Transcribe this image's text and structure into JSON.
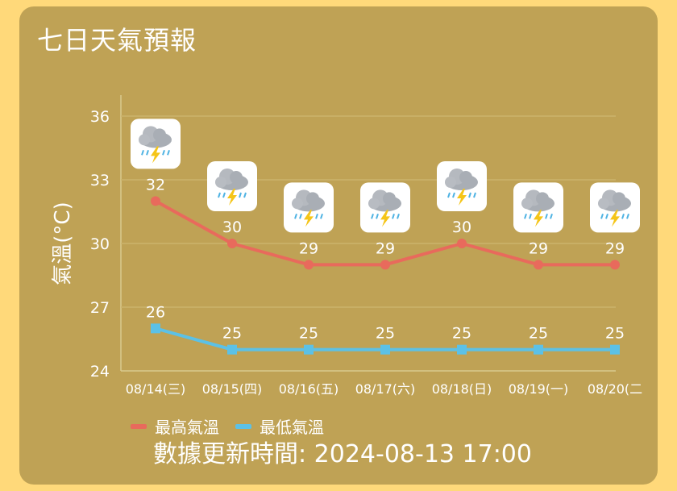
{
  "title": "七日天氣預報",
  "updated": "數據更新時間: 2024-08-13 17:00",
  "colors": {
    "background": "#ffd97a",
    "card": "#bfa255",
    "max": "#e86a5c",
    "min": "#5cc1e6"
  },
  "chart_data": {
    "type": "line",
    "ylabel": "氣溫(°C)",
    "ylim": [
      24,
      36
    ],
    "yticks": [
      24,
      27,
      30,
      33,
      36
    ],
    "categories": [
      "08/14(三)",
      "08/15(四)",
      "08/16(五)",
      "08/17(六)",
      "08/18(日)",
      "08/19(一)",
      "08/20(二"
    ],
    "icons": [
      "thunderstorm-icon",
      "thunderstorm-icon",
      "thunderstorm-icon",
      "thunderstorm-icon",
      "thunderstorm-icon",
      "thunderstorm-icon",
      "thunderstorm-icon"
    ],
    "series": [
      {
        "name": "最高氣溫",
        "color": "#e86a5c",
        "marker": "circle",
        "values": [
          32,
          30,
          29,
          29,
          30,
          29,
          29
        ]
      },
      {
        "name": "最低氣溫",
        "color": "#5cc1e6",
        "marker": "square",
        "values": [
          26,
          25,
          25,
          25,
          25,
          25,
          25
        ]
      }
    ],
    "legend": "bottom-left",
    "grid": true
  }
}
